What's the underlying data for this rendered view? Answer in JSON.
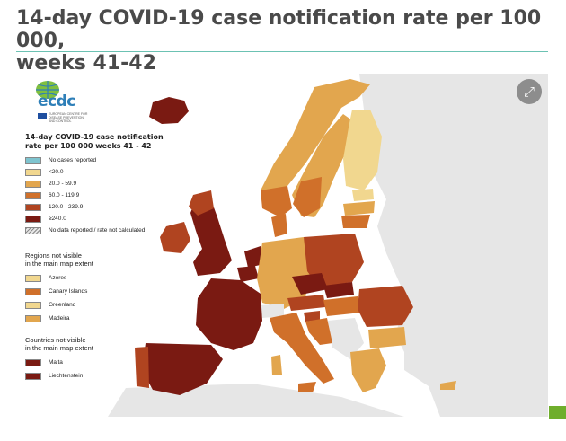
{
  "title": {
    "line1": "14-day COVID-19 case notification rate per 100 000,",
    "line2": "weeks 41-42"
  },
  "logo": {
    "text": "ecdc",
    "subtitle": "EUROPEAN CENTRE FOR DISEASE PREVENTION AND CONTROL"
  },
  "controls": {
    "fullscreen_icon": "expand-icon",
    "fullscreen_glyph": "⤢"
  },
  "legend": {
    "title_line1": "14-day COVID-19 case notification",
    "title_line2": "rate per 100 000 weeks 41 - 42",
    "items": [
      {
        "label": "No cases reported",
        "color": "#7ec4cf"
      },
      {
        "label": "<20.0",
        "color": "#f1d78f"
      },
      {
        "label": "20.0 - 59.9",
        "color": "#e2a64e"
      },
      {
        "label": "60.0 - 119.9",
        "color": "#d0702a"
      },
      {
        "label": "120.0 - 239.9",
        "color": "#b04420"
      },
      {
        "label": "≥240.0",
        "color": "#7a1a12"
      },
      {
        "label": "No data reported / rate not calculated",
        "color": "hatched"
      }
    ]
  },
  "regions_legend": {
    "title_line1": "Regions not visible",
    "title_line2": "in the main map extent",
    "items": [
      {
        "label": "Azores",
        "color": "#f1d78f"
      },
      {
        "label": "Canary Islands",
        "color": "#d0702a"
      },
      {
        "label": "Greenland",
        "color": "#f1d78f"
      },
      {
        "label": "Madeira",
        "color": "#e2a64e"
      }
    ]
  },
  "countries_legend": {
    "title_line1": "Countries not visible",
    "title_line2": "in the main map extent",
    "items": [
      {
        "label": "Malta",
        "color": "#7a1a12"
      },
      {
        "label": "Liechtenstein",
        "color": "#7a1a12"
      }
    ]
  },
  "colors": {
    "sea": "#ffffff",
    "non_eu_land": "#e6e6e6",
    "title_rule": "#6cc2b3",
    "title_text": "#4a4a4a",
    "accent_tab": "#6fae2c"
  }
}
